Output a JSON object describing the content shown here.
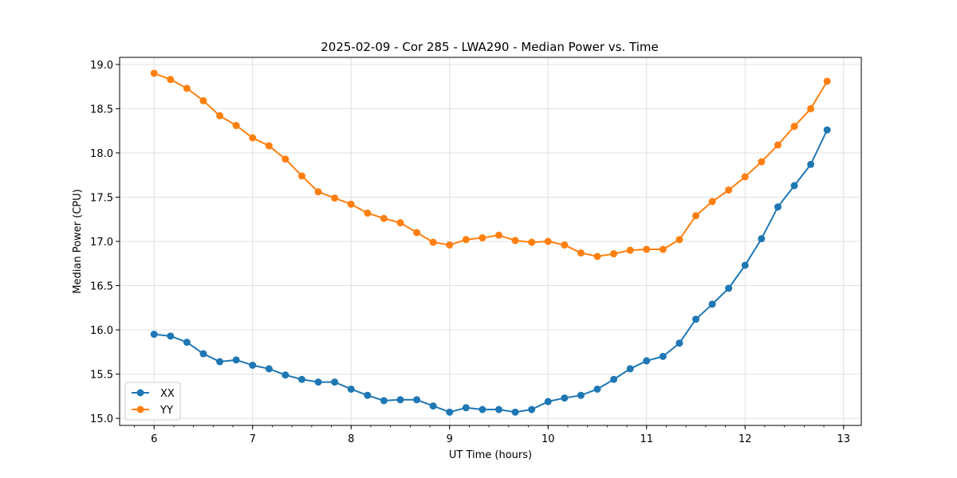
{
  "chart_data": {
    "type": "line",
    "title": "2025-02-09 - Cor 285 - LWA290 - Median Power vs. Time",
    "xlabel": "UT Time (hours)",
    "ylabel": "Median Power (CPU)",
    "xlim": [
      5.65,
      13.18
    ],
    "ylim": [
      14.92,
      19.08
    ],
    "xticks": [
      6,
      7,
      8,
      9,
      10,
      11,
      12,
      13
    ],
    "xtick_labels": [
      "6",
      "7",
      "8",
      "9",
      "10",
      "11",
      "12",
      "13"
    ],
    "yticks": [
      15.0,
      15.5,
      16.0,
      16.5,
      17.0,
      17.5,
      18.0,
      18.5,
      19.0
    ],
    "ytick_labels": [
      "15.0",
      "15.5",
      "16.0",
      "16.5",
      "17.0",
      "17.5",
      "18.0",
      "18.5",
      "19.0"
    ],
    "grid": true,
    "legend_position": "lower-left",
    "x": [
      6.0,
      6.1667,
      6.3333,
      6.5,
      6.6667,
      6.8333,
      7.0,
      7.1667,
      7.3333,
      7.5,
      7.6667,
      7.8333,
      8.0,
      8.1667,
      8.3333,
      8.5,
      8.6667,
      8.8333,
      9.0,
      9.1667,
      9.3333,
      9.5,
      9.6667,
      9.8333,
      10.0,
      10.1667,
      10.3333,
      10.5,
      10.6667,
      10.8333,
      11.0,
      11.1667,
      11.3333,
      11.5,
      11.6667,
      11.8333,
      12.0,
      12.1667,
      12.3333,
      12.5,
      12.6667,
      12.8333
    ],
    "series": [
      {
        "name": "XX",
        "color": "#1f77b4",
        "values": [
          15.95,
          15.93,
          15.86,
          15.73,
          15.64,
          15.66,
          15.6,
          15.56,
          15.49,
          15.44,
          15.41,
          15.41,
          15.33,
          15.26,
          15.2,
          15.21,
          15.21,
          15.14,
          15.07,
          15.12,
          15.1,
          15.1,
          15.07,
          15.1,
          15.19,
          15.23,
          15.26,
          15.33,
          15.44,
          15.56,
          15.65,
          15.7,
          15.85,
          16.12,
          16.29,
          16.47,
          16.73,
          17.03,
          17.39,
          17.63,
          17.87,
          18.26
        ]
      },
      {
        "name": "YY",
        "color": "#ff7f0e",
        "values": [
          18.9,
          18.83,
          18.73,
          18.59,
          18.42,
          18.31,
          18.17,
          18.08,
          17.93,
          17.74,
          17.56,
          17.49,
          17.42,
          17.32,
          17.26,
          17.21,
          17.1,
          16.99,
          16.96,
          17.02,
          17.04,
          17.07,
          17.01,
          16.99,
          17.0,
          16.96,
          16.87,
          16.83,
          16.86,
          16.9,
          16.91,
          16.91,
          17.02,
          17.29,
          17.45,
          17.58,
          17.73,
          17.9,
          18.09,
          18.3,
          18.5,
          18.81
        ]
      }
    ]
  }
}
